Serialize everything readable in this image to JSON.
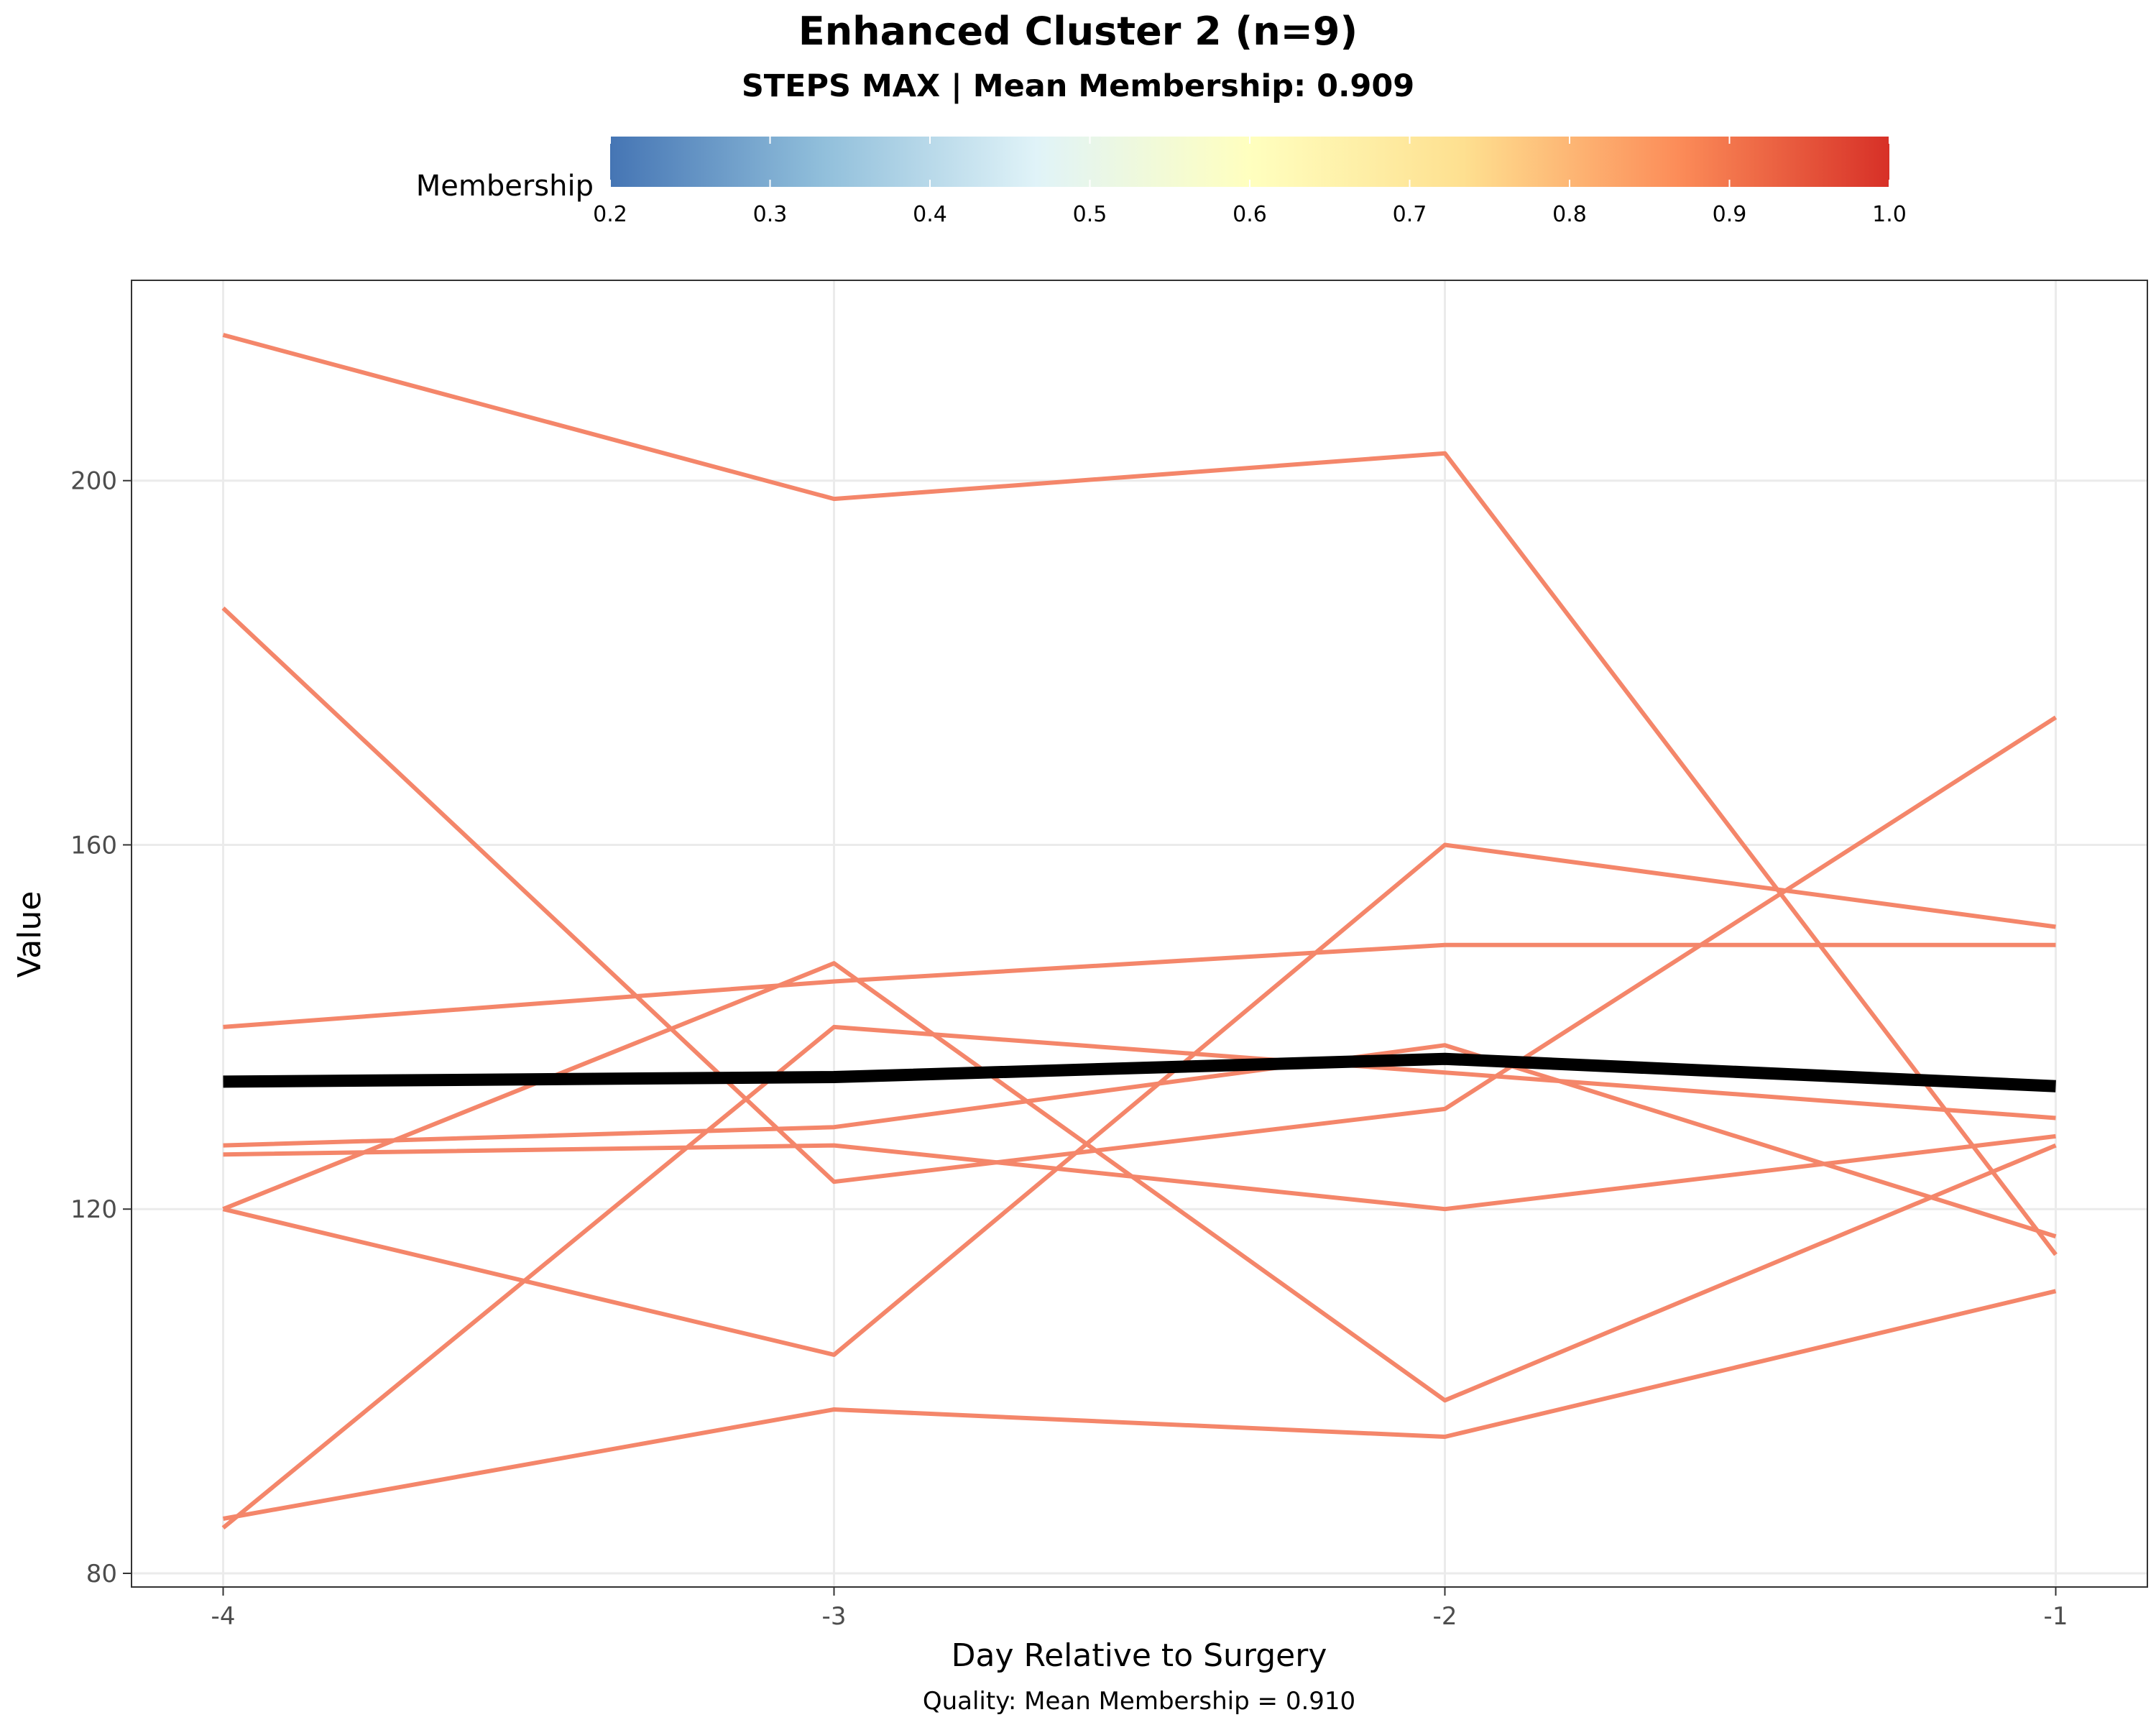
{
  "chart_data": {
    "type": "line",
    "title": "Enhanced Cluster 2 (n=9)",
    "subtitle": "STEPS MAX | Mean Membership: 0.909",
    "xlabel": "Day Relative to Surgery",
    "ylabel": "Value",
    "caption": "Quality: Mean Membership = 0.910",
    "x": [
      -4,
      -3,
      -2,
      -1
    ],
    "x_tick_labels": [
      "-4",
      "-3",
      "-2",
      "-1"
    ],
    "y_ticks": [
      80,
      120,
      160,
      200
    ],
    "xlim": [
      -4.15,
      -0.85
    ],
    "ylim": [
      78.5,
      222
    ],
    "grid": true,
    "legend": {
      "title": "Membership",
      "placement": "top",
      "type": "colorbar",
      "range": [
        0.2,
        1.0
      ],
      "tick_labels": [
        "0.2",
        "0.3",
        "0.4",
        "0.5",
        "0.6",
        "0.7",
        "0.8",
        "0.9",
        "1.0"
      ],
      "colors": [
        "#4575b4",
        "#91bfdb",
        "#e0f3f8",
        "#ffffbf",
        "#fee090",
        "#fc8d59",
        "#d73027"
      ]
    },
    "series_color": "#f4866a",
    "mean_color": "#000000",
    "series": [
      {
        "values": [
          216,
          198,
          203,
          115
        ]
      },
      {
        "values": [
          186,
          123,
          131,
          174
        ]
      },
      {
        "values": [
          140,
          145,
          149,
          149
        ]
      },
      {
        "values": [
          127,
          129,
          138,
          117
        ]
      },
      {
        "values": [
          126,
          127,
          120,
          128
        ]
      },
      {
        "values": [
          120,
          147,
          99,
          127
        ]
      },
      {
        "values": [
          120,
          104,
          160,
          151
        ]
      },
      {
        "values": [
          85,
          140,
          135,
          130
        ]
      },
      {
        "values": [
          86,
          98,
          95,
          111
        ]
      },
      {
        "mean": true,
        "values": [
          134,
          134.5,
          136.5,
          133.5
        ]
      }
    ]
  }
}
